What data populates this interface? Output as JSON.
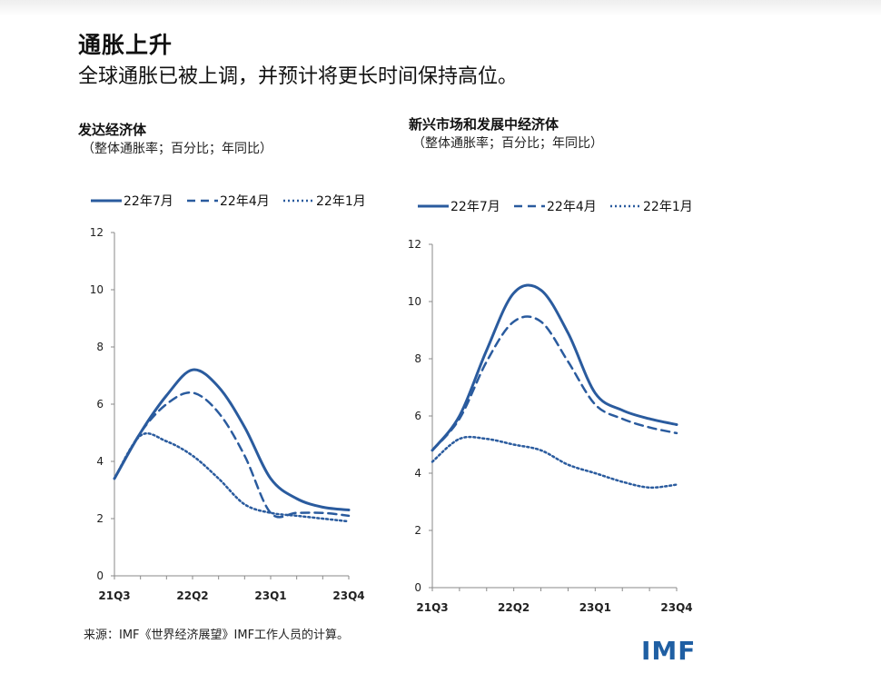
{
  "header": {
    "title": "通胀上升",
    "subtitle": "全球通胀已被上调，并预计将更长时间保持高位。"
  },
  "source_note": "来源：IMF《世界经济展望》IMF工作人员的计算。",
  "logo_text": "IMF",
  "colors": {
    "series": "#2a5b9e",
    "axis": "#8a8a8a"
  },
  "chart_data": [
    {
      "type": "line",
      "title": "发达经济体",
      "subtitle": "（整体通胀率；百分比；年同比）",
      "x_ticks": [
        "21Q3",
        "22Q2",
        "23Q1",
        "23Q4"
      ],
      "x": [
        "21Q3",
        "21Q4",
        "22Q1",
        "22Q2",
        "22Q3",
        "22Q4",
        "23Q1",
        "23Q2",
        "23Q3",
        "23Q4"
      ],
      "ylim": [
        0,
        12
      ],
      "y_ticks": [
        0,
        2,
        4,
        6,
        8,
        10,
        12
      ],
      "legend_position": "top-left",
      "series": [
        {
          "name": "22年7月",
          "style": "solid",
          "values": [
            3.4,
            5.0,
            6.3,
            7.2,
            6.6,
            5.2,
            3.4,
            2.7,
            2.4,
            2.3
          ]
        },
        {
          "name": "22年4月",
          "style": "dashed",
          "values": [
            3.4,
            5.0,
            6.0,
            6.4,
            5.7,
            4.2,
            2.2,
            2.2,
            2.2,
            2.1
          ]
        },
        {
          "name": "22年1月",
          "style": "dotted",
          "values": [
            3.4,
            4.9,
            4.7,
            4.2,
            3.4,
            2.5,
            2.2,
            2.1,
            2.0,
            1.9
          ]
        }
      ]
    },
    {
      "type": "line",
      "title": "新兴市场和发展中经济体",
      "subtitle": "（整体通胀率；百分比；年同比）",
      "x_ticks": [
        "21Q3",
        "22Q2",
        "23Q1",
        "23Q4"
      ],
      "x": [
        "21Q3",
        "21Q4",
        "22Q1",
        "22Q2",
        "22Q3",
        "22Q4",
        "23Q1",
        "23Q2",
        "23Q3",
        "23Q4"
      ],
      "ylim": [
        0,
        12
      ],
      "y_ticks": [
        0,
        2,
        4,
        6,
        8,
        10,
        12
      ],
      "legend_position": "top-left",
      "series": [
        {
          "name": "22年7月",
          "style": "solid",
          "values": [
            4.8,
            6.0,
            8.3,
            10.3,
            10.4,
            8.9,
            6.8,
            6.2,
            5.9,
            5.7
          ]
        },
        {
          "name": "22年4月",
          "style": "dashed",
          "values": [
            4.8,
            5.9,
            7.9,
            9.3,
            9.3,
            7.9,
            6.4,
            5.9,
            5.6,
            5.4
          ]
        },
        {
          "name": "22年1月",
          "style": "dotted",
          "values": [
            4.4,
            5.2,
            5.2,
            5.0,
            4.8,
            4.3,
            4.0,
            3.7,
            3.5,
            3.6
          ]
        }
      ]
    }
  ]
}
